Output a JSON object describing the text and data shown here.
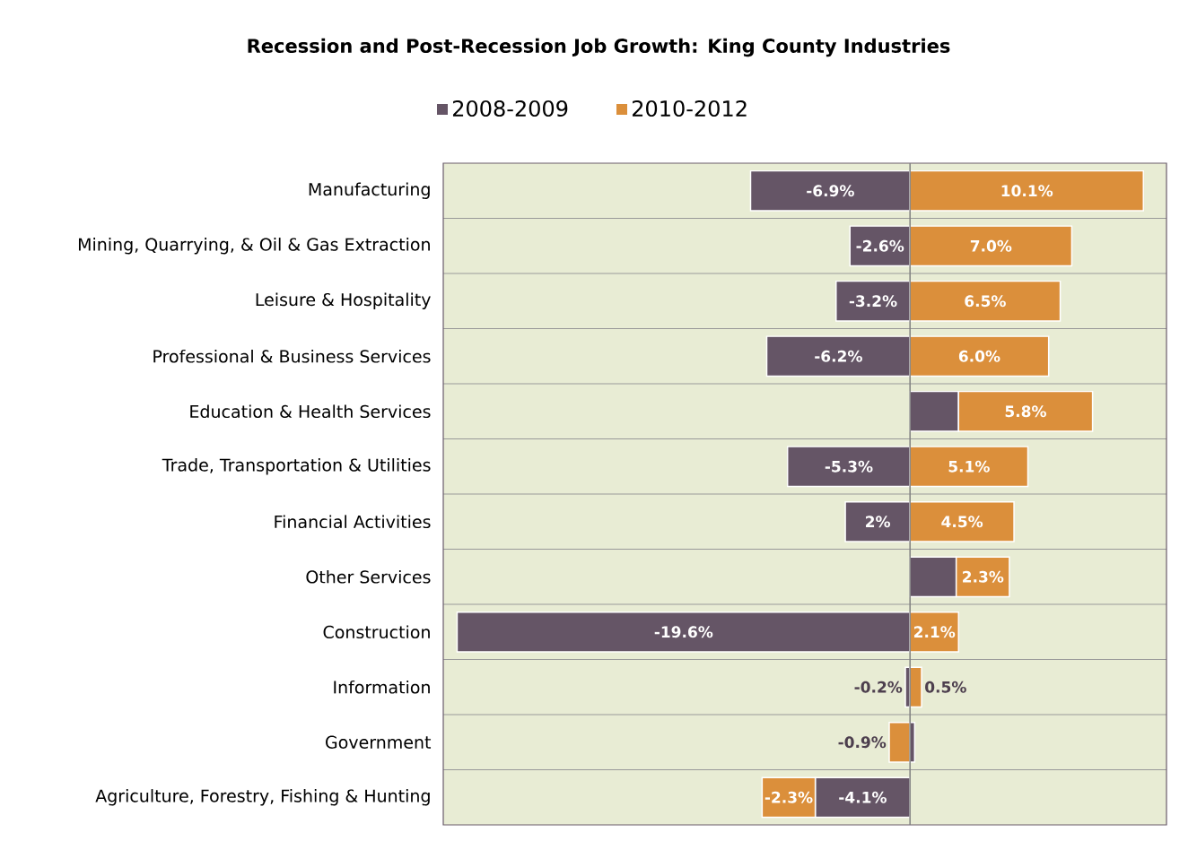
{
  "chart_data": {
    "type": "bar",
    "title": "Recession and Post-Recession Job Growth: King County Industries",
    "orientation": "horizontal",
    "stacked": true,
    "legend": "top",
    "grid": "y",
    "tick_labels": "y",
    "xlim": [
      -20.2,
      11.1
    ],
    "annotations": [
      {
        "text": "2%",
        "x": -1.4,
        "y": "Financial Activities"
      }
    ],
    "categories": [
      "Manufacturing",
      "Mining, Quarrying, & Oil & Gas Extraction",
      "Leisure & Hospitality",
      "Professional & Business Services",
      "Education & Health Services",
      "Trade, Transportation & Utilities",
      "Financial Activities",
      "Other Services",
      "Construction",
      "Information",
      "Government",
      "Agriculture, Forestry, Fishing & Hunting"
    ],
    "series": [
      {
        "name": "2008-2009",
        "color": "#655566",
        "values": [
          -6.9,
          -2.6,
          -3.2,
          -6.2,
          2.1,
          -5.3,
          -2.8,
          2.0,
          -19.6,
          -0.2,
          0.2,
          -4.1
        ],
        "value_labels": [
          "-6.9%",
          "-2.6%",
          "-3.2%",
          "-6.2%",
          null,
          "-5.3%",
          null,
          null,
          "-19.6%",
          "-0.2%",
          null,
          "-4.1%"
        ]
      },
      {
        "name": "2010-2012",
        "color": "#db8f3b",
        "values": [
          10.1,
          7.0,
          6.5,
          6.0,
          5.8,
          5.1,
          4.5,
          2.3,
          2.1,
          0.5,
          -0.9,
          -2.3
        ],
        "value_labels": [
          "10.1%",
          "7.0%",
          "6.5%",
          "6.0%",
          "5.8%",
          "5.1%",
          "4.5%",
          "2.3%",
          "2.1%",
          "0.5%",
          "-0.9%",
          "-2.3%"
        ]
      }
    ]
  }
}
